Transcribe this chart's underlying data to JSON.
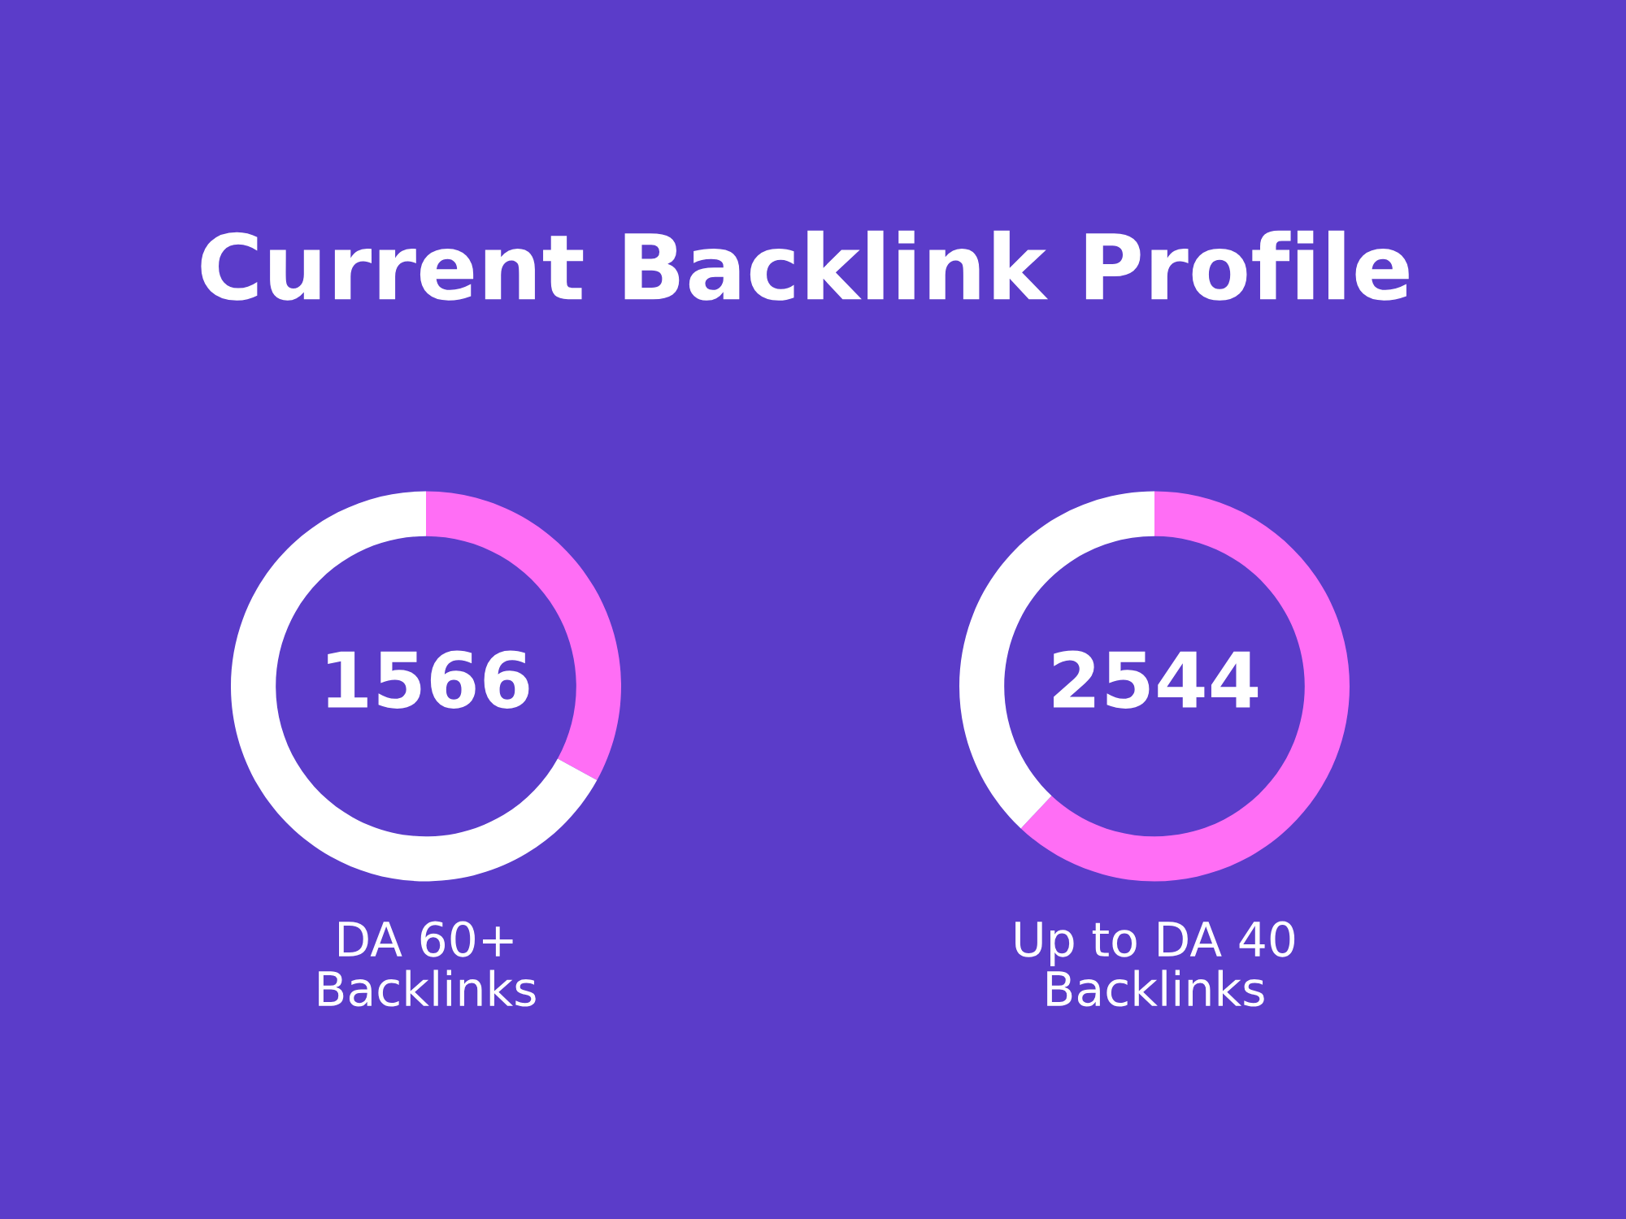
{
  "chart_data": [
    {
      "type": "donut",
      "title": "Current Backlink Profile",
      "categories": [
        null,
        null
      ],
      "values": [
        33,
        67
      ],
      "colors": [
        "#ff6ef5",
        "#ffffff"
      ],
      "annotations": [
        "1566"
      ],
      "xlabel": "DA 60+\nBacklinks"
    },
    {
      "type": "donut",
      "categories": [
        null,
        null
      ],
      "values": [
        62,
        38
      ],
      "colors": [
        "#ff6ef5",
        "#ffffff"
      ],
      "annotations": [
        "2544"
      ],
      "xlabel": "Up to DA 40\nBacklinks"
    }
  ]
}
